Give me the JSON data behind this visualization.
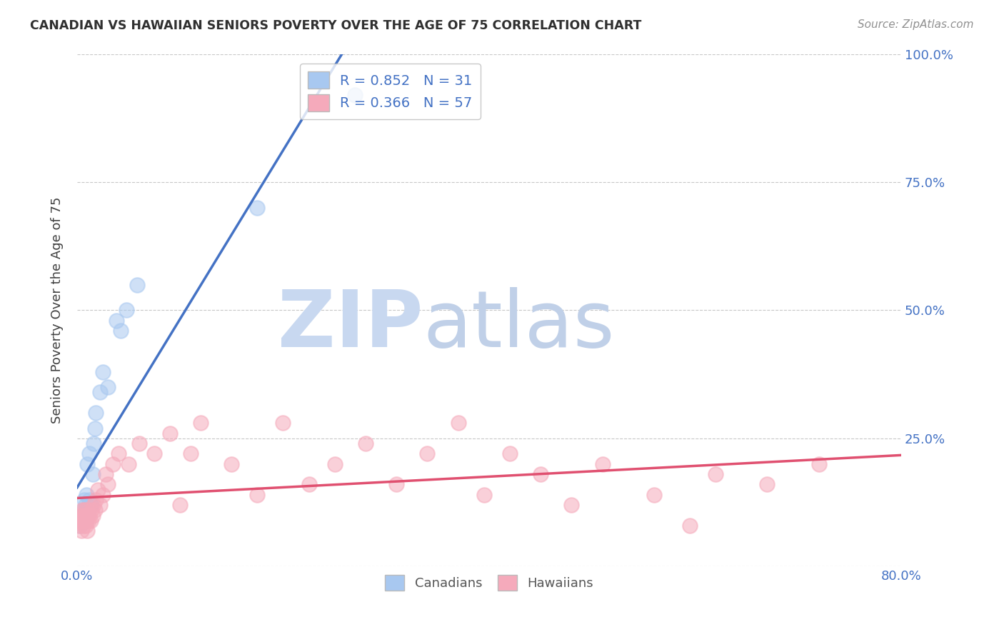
{
  "title": "CANADIAN VS HAWAIIAN SENIORS POVERTY OVER THE AGE OF 75 CORRELATION CHART",
  "source": "Source: ZipAtlas.com",
  "ylabel": "Seniors Poverty Over the Age of 75",
  "xlim": [
    0.0,
    0.8
  ],
  "ylim": [
    0.0,
    1.0
  ],
  "xticks": [
    0.0,
    0.16,
    0.32,
    0.48,
    0.64,
    0.8
  ],
  "xticklabels": [
    "0.0%",
    "",
    "",
    "",
    "",
    "80.0%"
  ],
  "yticks": [
    0.0,
    0.25,
    0.5,
    0.75,
    1.0
  ],
  "yticklabels": [
    "",
    "25.0%",
    "50.0%",
    "75.0%",
    "100.0%"
  ],
  "canadian_R": 0.852,
  "canadian_N": 31,
  "hawaiian_R": 0.366,
  "hawaiian_N": 57,
  "canadian_color": "#A8C8F0",
  "hawaiian_color": "#F5AABB",
  "canadian_line_color": "#4472C4",
  "hawaiian_line_color": "#E05070",
  "watermark_zip": "ZIP",
  "watermark_atlas": "atlas",
  "watermark_zip_color": "#C8D8F0",
  "watermark_atlas_color": "#C0D0E8",
  "background_color": "#FFFFFF",
  "grid_color": "#C8C8C8",
  "title_color": "#303030",
  "tick_color": "#4472C4",
  "canadians_x": [
    0.003,
    0.004,
    0.005,
    0.006,
    0.006,
    0.007,
    0.007,
    0.008,
    0.008,
    0.009,
    0.009,
    0.01,
    0.01,
    0.011,
    0.012,
    0.012,
    0.013,
    0.014,
    0.015,
    0.016,
    0.017,
    0.018,
    0.022,
    0.025,
    0.03,
    0.038,
    0.042,
    0.048,
    0.058,
    0.175,
    0.27
  ],
  "canadians_y": [
    0.08,
    0.09,
    0.1,
    0.09,
    0.11,
    0.1,
    0.13,
    0.09,
    0.12,
    0.11,
    0.14,
    0.1,
    0.2,
    0.11,
    0.13,
    0.22,
    0.12,
    0.12,
    0.18,
    0.24,
    0.27,
    0.3,
    0.34,
    0.38,
    0.35,
    0.48,
    0.46,
    0.5,
    0.55,
    0.7,
    0.92
  ],
  "hawaiians_x": [
    0.002,
    0.003,
    0.004,
    0.004,
    0.005,
    0.005,
    0.006,
    0.006,
    0.007,
    0.007,
    0.008,
    0.008,
    0.009,
    0.009,
    0.01,
    0.01,
    0.011,
    0.012,
    0.013,
    0.014,
    0.015,
    0.016,
    0.017,
    0.018,
    0.02,
    0.022,
    0.025,
    0.028,
    0.03,
    0.035,
    0.04,
    0.05,
    0.06,
    0.075,
    0.09,
    0.1,
    0.11,
    0.12,
    0.15,
    0.175,
    0.2,
    0.225,
    0.25,
    0.28,
    0.31,
    0.34,
    0.37,
    0.395,
    0.42,
    0.45,
    0.48,
    0.51,
    0.56,
    0.595,
    0.62,
    0.67,
    0.72
  ],
  "hawaiians_y": [
    0.08,
    0.09,
    0.1,
    0.07,
    0.09,
    0.11,
    0.08,
    0.1,
    0.09,
    0.11,
    0.08,
    0.1,
    0.09,
    0.11,
    0.07,
    0.1,
    0.09,
    0.1,
    0.09,
    0.11,
    0.1,
    0.12,
    0.11,
    0.13,
    0.15,
    0.12,
    0.14,
    0.18,
    0.16,
    0.2,
    0.22,
    0.2,
    0.24,
    0.22,
    0.26,
    0.12,
    0.22,
    0.28,
    0.2,
    0.14,
    0.28,
    0.16,
    0.2,
    0.24,
    0.16,
    0.22,
    0.28,
    0.14,
    0.22,
    0.18,
    0.12,
    0.2,
    0.14,
    0.08,
    0.18,
    0.16,
    0.2
  ]
}
